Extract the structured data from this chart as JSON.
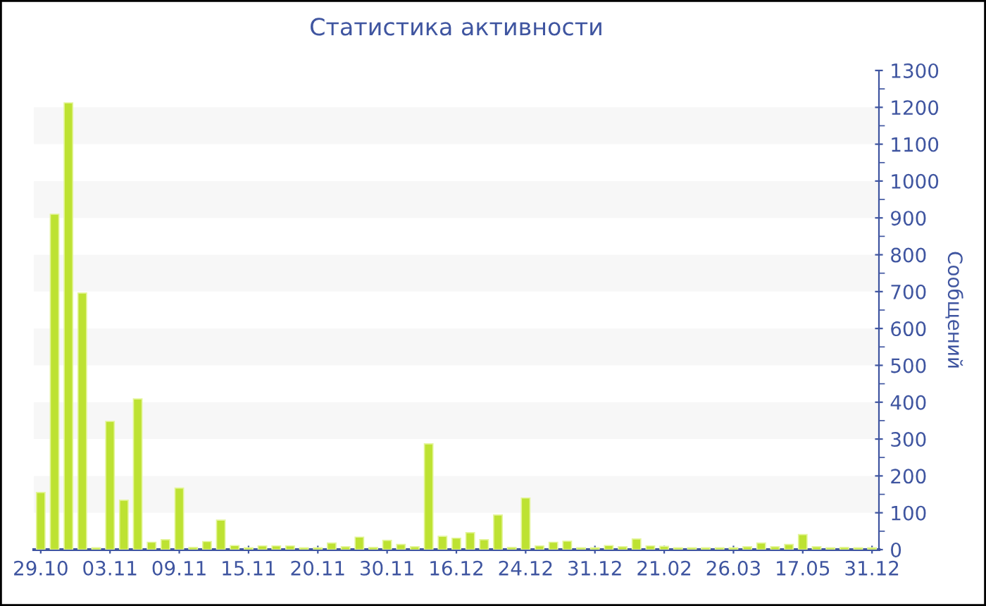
{
  "chart_data": {
    "type": "bar",
    "title": "Статистика активности",
    "ylabel": "Сообщений",
    "categories": [
      "29.10",
      null,
      null,
      null,
      null,
      "03.11",
      null,
      null,
      null,
      null,
      "09.11",
      null,
      null,
      null,
      null,
      "15.11",
      null,
      null,
      null,
      null,
      "20.11",
      null,
      null,
      null,
      null,
      "30.11",
      null,
      null,
      null,
      null,
      "16.12",
      null,
      null,
      null,
      null,
      "24.12",
      null,
      null,
      null,
      null,
      "31.12",
      null,
      null,
      null,
      null,
      "21.02",
      null,
      null,
      null,
      null,
      "26.03",
      null,
      null,
      null,
      null,
      "17.05",
      null,
      null,
      null,
      null,
      "31.12"
    ],
    "values": [
      155,
      910,
      1212,
      696,
      5,
      348,
      134,
      409,
      20,
      27,
      167,
      6,
      22,
      80,
      11,
      5,
      10,
      10,
      10,
      5,
      5,
      18,
      8,
      34,
      6,
      25,
      14,
      8,
      287,
      36,
      31,
      46,
      27,
      94,
      6,
      140,
      10,
      20,
      23,
      5,
      5,
      11,
      8,
      29,
      10,
      9,
      5,
      5,
      5,
      5,
      5,
      8,
      18,
      8,
      14,
      41,
      8,
      5,
      6,
      5,
      5
    ],
    "color": "#bde232",
    "ylim": [
      0,
      1300
    ],
    "yticks": [
      0,
      100,
      200,
      300,
      400,
      500,
      600,
      700,
      800,
      900,
      1000,
      1100,
      1200,
      1300
    ],
    "bands": [
      {
        "axis": "y",
        "from": 100,
        "to": 200,
        "color": "#f7f7f7"
      },
      {
        "axis": "y",
        "from": 300,
        "to": 400,
        "color": "#f7f7f7"
      },
      {
        "axis": "y",
        "from": 500,
        "to": 600,
        "color": "#f7f7f7"
      },
      {
        "axis": "y",
        "from": 700,
        "to": 800,
        "color": "#f7f7f7"
      },
      {
        "axis": "y",
        "from": 900,
        "to": 1000,
        "color": "#f7f7f7"
      },
      {
        "axis": "y",
        "from": 1100,
        "to": 1200,
        "color": "#f7f7f7"
      }
    ],
    "grid": false,
    "legend": false
  }
}
